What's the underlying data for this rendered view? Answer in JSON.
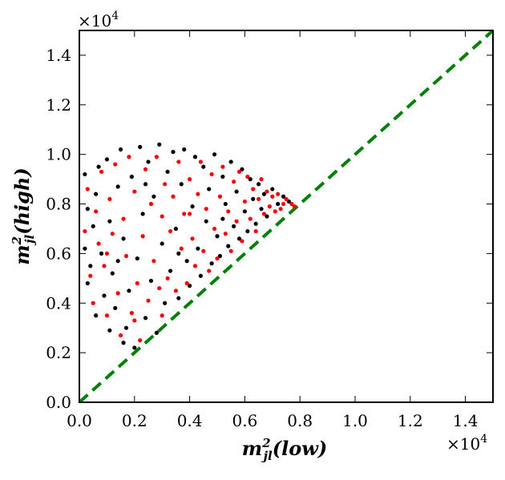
{
  "chart_data": {
    "type": "scatter",
    "title": "",
    "xlabel": {
      "base": "m",
      "sup": "2",
      "sub": "jl",
      "paren": "(low)"
    },
    "ylabel": {
      "base": "m",
      "sup": "2",
      "sub": "jl",
      "paren": "(high)"
    },
    "x_multiplier": "×10",
    "y_multiplier": "×10",
    "multiplier_exponent": "4",
    "xlim": [
      0,
      1.5
    ],
    "ylim": [
      0,
      1.5
    ],
    "xticks": [
      "0.0",
      "0.2",
      "0.4",
      "0.6",
      "0.8",
      "1.0",
      "1.2",
      "1.4"
    ],
    "yticks": [
      "0.0",
      "0.2",
      "0.4",
      "0.6",
      "0.8",
      "1.0",
      "1.2",
      "1.4"
    ],
    "reference_line": {
      "name": "diagonal y = x",
      "x": [
        0,
        1.5
      ],
      "y": [
        0,
        1.5
      ],
      "color": "#008000",
      "style": "dashed"
    },
    "series": [
      {
        "name": "black points",
        "color": "#000000",
        "points": [
          [
            0.02,
            0.92
          ],
          [
            0.03,
            0.78
          ],
          [
            0.02,
            0.62
          ],
          [
            0.04,
            0.55
          ],
          [
            0.05,
            0.71
          ],
          [
            0.03,
            0.48
          ],
          [
            0.06,
            0.84
          ],
          [
            0.07,
            0.95
          ],
          [
            0.08,
            0.6
          ],
          [
            0.09,
            0.43
          ],
          [
            0.1,
            0.98
          ],
          [
            0.11,
            0.73
          ],
          [
            0.12,
            0.52
          ],
          [
            0.13,
            0.38
          ],
          [
            0.14,
            0.87
          ],
          [
            0.15,
            1.02
          ],
          [
            0.16,
            0.66
          ],
          [
            0.17,
            0.3
          ],
          [
            0.18,
            0.45
          ],
          [
            0.19,
            0.91
          ],
          [
            0.2,
            0.22
          ],
          [
            0.21,
            0.58
          ],
          [
            0.22,
            1.03
          ],
          [
            0.23,
            0.76
          ],
          [
            0.24,
            0.34
          ],
          [
            0.25,
            0.97
          ],
          [
            0.26,
            0.49
          ],
          [
            0.27,
            0.83
          ],
          [
            0.28,
            0.28
          ],
          [
            0.29,
            1.04
          ],
          [
            0.3,
            0.64
          ],
          [
            0.31,
            0.4
          ],
          [
            0.32,
            0.93
          ],
          [
            0.33,
            0.53
          ],
          [
            0.34,
            1.01
          ],
          [
            0.35,
            0.7
          ],
          [
            0.36,
            0.42
          ],
          [
            0.37,
            0.88
          ],
          [
            0.38,
            1.02
          ],
          [
            0.39,
            0.57
          ],
          [
            0.4,
            0.47
          ],
          [
            0.41,
            0.79
          ],
          [
            0.42,
            0.99
          ],
          [
            0.43,
            0.62
          ],
          [
            0.44,
            0.51
          ],
          [
            0.45,
            0.95
          ],
          [
            0.46,
            0.73
          ],
          [
            0.47,
            0.86
          ],
          [
            0.48,
            0.56
          ],
          [
            0.49,
            1.0
          ],
          [
            0.5,
            0.67
          ],
          [
            0.51,
            0.59
          ],
          [
            0.52,
            0.91
          ],
          [
            0.53,
            0.8
          ],
          [
            0.54,
            0.63
          ],
          [
            0.55,
            0.97
          ],
          [
            0.56,
            0.71
          ],
          [
            0.57,
            0.85
          ],
          [
            0.58,
            0.66
          ],
          [
            0.59,
            0.94
          ],
          [
            0.6,
            0.77
          ],
          [
            0.61,
            0.69
          ],
          [
            0.62,
            0.9
          ],
          [
            0.63,
            0.82
          ],
          [
            0.64,
            0.72
          ],
          [
            0.65,
            0.88
          ],
          [
            0.66,
            0.78
          ],
          [
            0.67,
            0.84
          ],
          [
            0.68,
            0.75
          ],
          [
            0.7,
            0.86
          ],
          [
            0.72,
            0.8
          ],
          [
            0.74,
            0.83
          ],
          [
            0.76,
            0.81
          ],
          [
            0.06,
            0.35
          ],
          [
            0.11,
            0.29
          ],
          [
            0.16,
            0.24
          ],
          [
            0.14,
            0.57
          ],
          [
            0.24,
            0.88
          ],
          [
            0.36,
            0.6
          ],
          [
            0.52,
            0.74
          ]
        ]
      },
      {
        "name": "red points",
        "color": "#ff0000",
        "points": [
          [
            0.02,
            0.69
          ],
          [
            0.03,
            0.86
          ],
          [
            0.04,
            0.51
          ],
          [
            0.05,
            0.4
          ],
          [
            0.06,
            0.77
          ],
          [
            0.07,
            0.64
          ],
          [
            0.08,
            0.93
          ],
          [
            0.09,
            0.55
          ],
          [
            0.1,
            0.35
          ],
          [
            0.11,
            0.82
          ],
          [
            0.12,
            0.68
          ],
          [
            0.13,
            0.96
          ],
          [
            0.14,
            0.44
          ],
          [
            0.15,
            0.27
          ],
          [
            0.16,
            0.74
          ],
          [
            0.17,
            0.59
          ],
          [
            0.18,
            0.99
          ],
          [
            0.19,
            0.36
          ],
          [
            0.2,
            0.85
          ],
          [
            0.21,
            0.48
          ],
          [
            0.22,
            0.25
          ],
          [
            0.23,
            0.67
          ],
          [
            0.24,
            0.94
          ],
          [
            0.25,
            0.41
          ],
          [
            0.26,
            0.8
          ],
          [
            0.27,
            0.57
          ],
          [
            0.28,
            0.99
          ],
          [
            0.29,
            0.46
          ],
          [
            0.3,
            0.75
          ],
          [
            0.31,
            0.88
          ],
          [
            0.32,
            0.5
          ],
          [
            0.33,
            0.69
          ],
          [
            0.34,
            0.83
          ],
          [
            0.35,
            0.45
          ],
          [
            0.36,
            0.97
          ],
          [
            0.37,
            0.62
          ],
          [
            0.38,
            0.76
          ],
          [
            0.39,
            0.48
          ],
          [
            0.4,
            0.9
          ],
          [
            0.41,
            0.66
          ],
          [
            0.42,
            0.55
          ],
          [
            0.43,
            0.84
          ],
          [
            0.44,
            0.97
          ],
          [
            0.45,
            0.61
          ],
          [
            0.46,
            0.78
          ],
          [
            0.47,
            0.53
          ],
          [
            0.48,
            0.92
          ],
          [
            0.49,
            0.7
          ],
          [
            0.5,
            0.58
          ],
          [
            0.51,
            0.83
          ],
          [
            0.52,
            0.95
          ],
          [
            0.53,
            0.68
          ],
          [
            0.54,
            0.77
          ],
          [
            0.55,
            0.61
          ],
          [
            0.56,
            0.89
          ],
          [
            0.57,
            0.73
          ],
          [
            0.58,
            0.93
          ],
          [
            0.59,
            0.65
          ],
          [
            0.6,
            0.81
          ],
          [
            0.61,
            0.91
          ],
          [
            0.62,
            0.74
          ],
          [
            0.63,
            0.86
          ],
          [
            0.64,
            0.69
          ],
          [
            0.65,
            0.82
          ],
          [
            0.66,
            0.9
          ],
          [
            0.67,
            0.76
          ],
          [
            0.68,
            0.85
          ],
          [
            0.69,
            0.79
          ],
          [
            0.7,
            0.83
          ],
          [
            0.71,
            0.77
          ],
          [
            0.72,
            0.84
          ],
          [
            0.73,
            0.78
          ],
          [
            0.74,
            0.8
          ],
          [
            0.75,
            0.82
          ],
          [
            0.77,
            0.8
          ],
          [
            0.78,
            0.79
          ],
          [
            0.1,
            0.6
          ],
          [
            0.2,
            0.33
          ],
          [
            0.3,
            0.35
          ],
          [
            0.4,
            0.76
          ]
        ]
      }
    ]
  }
}
